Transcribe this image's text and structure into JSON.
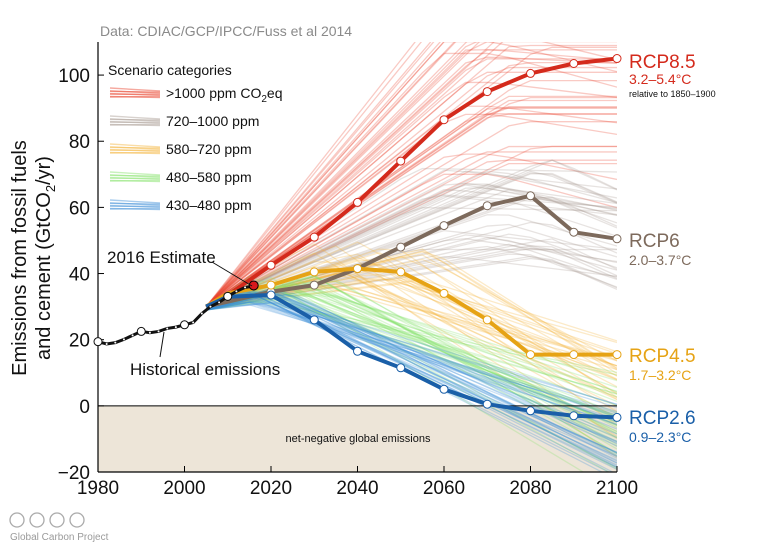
{
  "source": "Data: CDIAC/GCP/IPCC/Fuss et al 2014",
  "credit": "Global Carbon Project",
  "chart_data": {
    "type": "line",
    "ylabel_line1": "Emissions from fossil fuels",
    "ylabel_line2_pre": "and cement (GtCO",
    "ylabel_line2_sub": "2",
    "ylabel_line2_post": "/yr)",
    "xlim": [
      1980,
      2100
    ],
    "ylim": [
      -20,
      110
    ],
    "xticks": [
      1980,
      2000,
      2020,
      2040,
      2060,
      2080,
      2100
    ],
    "yticks": [
      -20,
      0,
      20,
      40,
      60,
      80,
      100
    ],
    "negative_region_label": "net-negative global emissions",
    "legend": {
      "title": "Scenario categories",
      "placement": "top-left",
      "items": [
        {
          "label": ">1000 ppm CO",
          "sub": "2",
          "post": "eq",
          "color": "#e8402a"
        },
        {
          "label": "720–1000 ppm",
          "color": "#a89c92"
        },
        {
          "label": "580–720 ppm",
          "color": "#f3b43a"
        },
        {
          "label": "480–580 ppm",
          "color": "#86e36a"
        },
        {
          "label": "430–480 ppm",
          "color": "#3d8fd6"
        }
      ]
    },
    "historical": {
      "name": "Historical emissions",
      "x": [
        1980,
        1982,
        1984,
        1986,
        1988,
        1990,
        1992,
        1994,
        1996,
        1998,
        2000,
        2002,
        2004,
        2006,
        2008,
        2010,
        2012,
        2014,
        2016
      ],
      "y": [
        19.4,
        18.7,
        19.1,
        20.1,
        21.3,
        22.5,
        22.1,
        22.5,
        23.4,
        23.8,
        24.5,
        25.2,
        27.9,
        30.0,
        31.3,
        33.1,
        34.6,
        35.8,
        36.2
      ],
      "color": "#111111"
    },
    "estimate": {
      "label": "2016 Estimate",
      "x": 2016,
      "y": 36.4,
      "color": "#d7191c"
    },
    "series": [
      {
        "name": "RCP8.5",
        "range": "3.2–5.4°C",
        "note": "relative to 1850–1900",
        "color": "#d42a1c",
        "x": [
          2005,
          2010,
          2020,
          2030,
          2040,
          2050,
          2060,
          2070,
          2080,
          2090,
          2100
        ],
        "y": [
          30,
          33.5,
          42.5,
          51,
          61.5,
          74,
          86.5,
          95,
          100.5,
          103.5,
          105
        ]
      },
      {
        "name": "RCP6",
        "range": "2.0–3.7°C",
        "color": "#7d6a5c",
        "x": [
          2005,
          2010,
          2020,
          2030,
          2040,
          2050,
          2060,
          2070,
          2080,
          2090,
          2100
        ],
        "y": [
          30,
          31.5,
          34.5,
          36.5,
          41.5,
          48,
          54.5,
          60.5,
          63.5,
          52.5,
          50.5
        ]
      },
      {
        "name": "RCP4.5",
        "range": "1.7–3.2°C",
        "color": "#e6a315",
        "x": [
          2005,
          2010,
          2020,
          2030,
          2040,
          2050,
          2060,
          2070,
          2080,
          2090,
          2100
        ],
        "y": [
          30,
          34,
          36.5,
          40.5,
          41.5,
          40.5,
          34,
          26,
          15.5,
          15.5,
          15.5
        ]
      },
      {
        "name": "RCP2.6",
        "range": "0.9–2.3°C",
        "color": "#1a5fa8",
        "x": [
          2005,
          2010,
          2020,
          2030,
          2040,
          2050,
          2060,
          2070,
          2080,
          2090,
          2100
        ],
        "y": [
          30,
          33,
          33.5,
          26,
          16.5,
          11.5,
          5,
          0.5,
          -1.5,
          -3,
          -3.5
        ]
      }
    ],
    "annotations": [
      {
        "text": "2016 Estimate",
        "points_to": [
          2016,
          36.4
        ]
      },
      {
        "text": "Historical emissions",
        "points_to": [
          1993,
          22.5
        ]
      }
    ],
    "background_scenario_colors": [
      "#e8402a",
      "#a89c92",
      "#f3b43a",
      "#86e36a",
      "#3d8fd6"
    ]
  }
}
